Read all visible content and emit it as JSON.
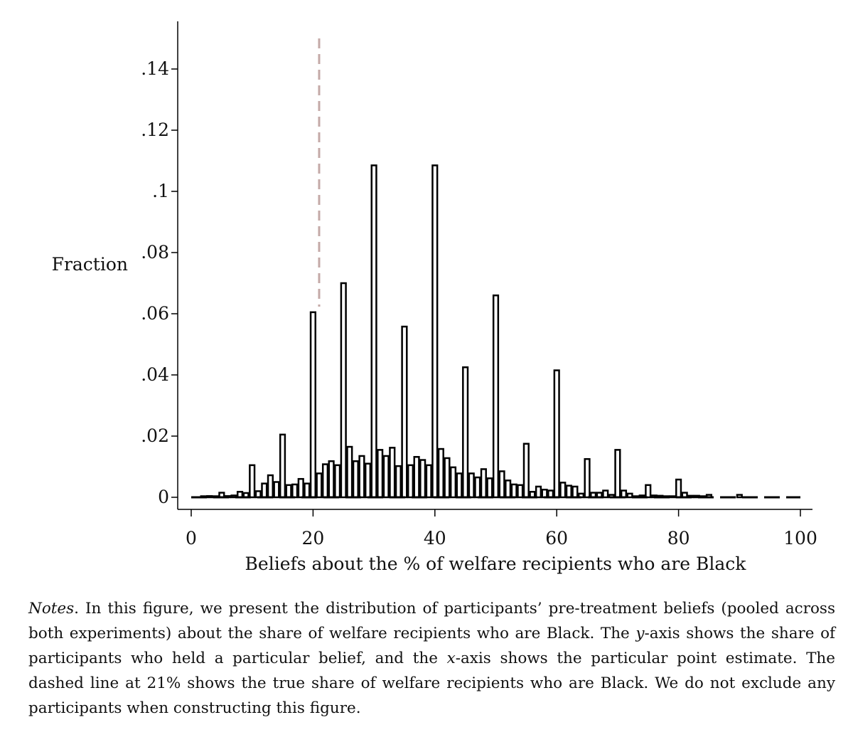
{
  "chart_data": {
    "type": "bar",
    "xlabel": "Beliefs about the % of welfare recipients who are Black",
    "ylabel": "Fraction",
    "xlim": [
      0,
      100
    ],
    "ylim": [
      0,
      0.15
    ],
    "xticks": [
      0,
      20,
      40,
      60,
      80,
      100
    ],
    "xtick_labels": [
      "0",
      "20",
      "40",
      "60",
      "80",
      "100"
    ],
    "yticks": [
      0,
      0.02,
      0.04,
      0.06,
      0.08,
      0.1,
      0.12,
      0.14
    ],
    "ytick_labels": [
      "0",
      ".02",
      ".04",
      ".06",
      ".08",
      ".1",
      ".12",
      ".14"
    ],
    "bin_width": 1,
    "bins": [
      {
        "x": 2,
        "y": 0.0002
      },
      {
        "x": 3,
        "y": 0.0004
      },
      {
        "x": 4,
        "y": 0.0003
      },
      {
        "x": 5,
        "y": 0.0015
      },
      {
        "x": 6,
        "y": 0.0004
      },
      {
        "x": 7,
        "y": 0.0006
      },
      {
        "x": 8,
        "y": 0.0018
      },
      {
        "x": 9,
        "y": 0.0014
      },
      {
        "x": 10,
        "y": 0.0105
      },
      {
        "x": 11,
        "y": 0.002
      },
      {
        "x": 12,
        "y": 0.0045
      },
      {
        "x": 13,
        "y": 0.0072
      },
      {
        "x": 14,
        "y": 0.005
      },
      {
        "x": 15,
        "y": 0.0205
      },
      {
        "x": 16,
        "y": 0.004
      },
      {
        "x": 17,
        "y": 0.0042
      },
      {
        "x": 18,
        "y": 0.006
      },
      {
        "x": 19,
        "y": 0.0045
      },
      {
        "x": 20,
        "y": 0.0605
      },
      {
        "x": 21,
        "y": 0.0078
      },
      {
        "x": 22,
        "y": 0.0108
      },
      {
        "x": 23,
        "y": 0.0118
      },
      {
        "x": 24,
        "y": 0.0105
      },
      {
        "x": 25,
        "y": 0.07
      },
      {
        "x": 26,
        "y": 0.0165
      },
      {
        "x": 27,
        "y": 0.0118
      },
      {
        "x": 28,
        "y": 0.0135
      },
      {
        "x": 29,
        "y": 0.011
      },
      {
        "x": 30,
        "y": 0.1085
      },
      {
        "x": 31,
        "y": 0.0155
      },
      {
        "x": 32,
        "y": 0.0135
      },
      {
        "x": 33,
        "y": 0.0162
      },
      {
        "x": 34,
        "y": 0.0102
      },
      {
        "x": 35,
        "y": 0.0558
      },
      {
        "x": 36,
        "y": 0.0105
      },
      {
        "x": 37,
        "y": 0.0132
      },
      {
        "x": 38,
        "y": 0.0122
      },
      {
        "x": 39,
        "y": 0.0105
      },
      {
        "x": 40,
        "y": 0.1085
      },
      {
        "x": 41,
        "y": 0.0158
      },
      {
        "x": 42,
        "y": 0.0128
      },
      {
        "x": 43,
        "y": 0.0098
      },
      {
        "x": 44,
        "y": 0.0078
      },
      {
        "x": 45,
        "y": 0.0425
      },
      {
        "x": 46,
        "y": 0.0078
      },
      {
        "x": 47,
        "y": 0.0065
      },
      {
        "x": 48,
        "y": 0.0092
      },
      {
        "x": 49,
        "y": 0.0062
      },
      {
        "x": 50,
        "y": 0.066
      },
      {
        "x": 51,
        "y": 0.0085
      },
      {
        "x": 52,
        "y": 0.0055
      },
      {
        "x": 53,
        "y": 0.0042
      },
      {
        "x": 54,
        "y": 0.004
      },
      {
        "x": 55,
        "y": 0.0175
      },
      {
        "x": 56,
        "y": 0.0018
      },
      {
        "x": 57,
        "y": 0.0035
      },
      {
        "x": 58,
        "y": 0.0025
      },
      {
        "x": 59,
        "y": 0.0022
      },
      {
        "x": 60,
        "y": 0.0415
      },
      {
        "x": 61,
        "y": 0.0048
      },
      {
        "x": 62,
        "y": 0.0038
      },
      {
        "x": 63,
        "y": 0.0035
      },
      {
        "x": 64,
        "y": 0.0012
      },
      {
        "x": 65,
        "y": 0.0125
      },
      {
        "x": 66,
        "y": 0.0015
      },
      {
        "x": 67,
        "y": 0.0015
      },
      {
        "x": 68,
        "y": 0.0022
      },
      {
        "x": 69,
        "y": 0.0008
      },
      {
        "x": 70,
        "y": 0.0155
      },
      {
        "x": 71,
        "y": 0.0022
      },
      {
        "x": 72,
        "y": 0.0012
      },
      {
        "x": 73,
        "y": 0.0003
      },
      {
        "x": 74,
        "y": 0.0006
      },
      {
        "x": 75,
        "y": 0.004
      },
      {
        "x": 76,
        "y": 0.0006
      },
      {
        "x": 77,
        "y": 0.0005
      },
      {
        "x": 78,
        "y": 0.0003
      },
      {
        "x": 79,
        "y": 0.0002
      },
      {
        "x": 80,
        "y": 0.0058
      },
      {
        "x": 81,
        "y": 0.0015
      },
      {
        "x": 82,
        "y": 0.0005
      },
      {
        "x": 83,
        "y": 0.0005
      },
      {
        "x": 84,
        "y": 0.0002
      },
      {
        "x": 85,
        "y": 0.0008
      },
      {
        "x": 90,
        "y": 0.0008
      }
    ],
    "reference_line": {
      "x": 21,
      "style": "dashed",
      "color": "#c4a9a7"
    },
    "baseline_style": "dashed",
    "bar_fill": "#ffffff",
    "bar_stroke": "#000000",
    "grid": false,
    "legend": "none"
  },
  "caption": {
    "notes_label": "Notes",
    "text_1": ". In this figure, we present the distribution of participants’ pre-treatment beliefs (pooled across both experiments) about the share of welfare recipients who are Black. The ",
    "axis_y": "y",
    "text_2": "-axis shows the share of participants who held a particular belief, and the ",
    "axis_x": "x",
    "text_3": "-axis shows the particular point estimate. The dashed line at 21% shows the true share of welfare recipients who are Black. We do not exclude any participants when constructing this figure."
  }
}
